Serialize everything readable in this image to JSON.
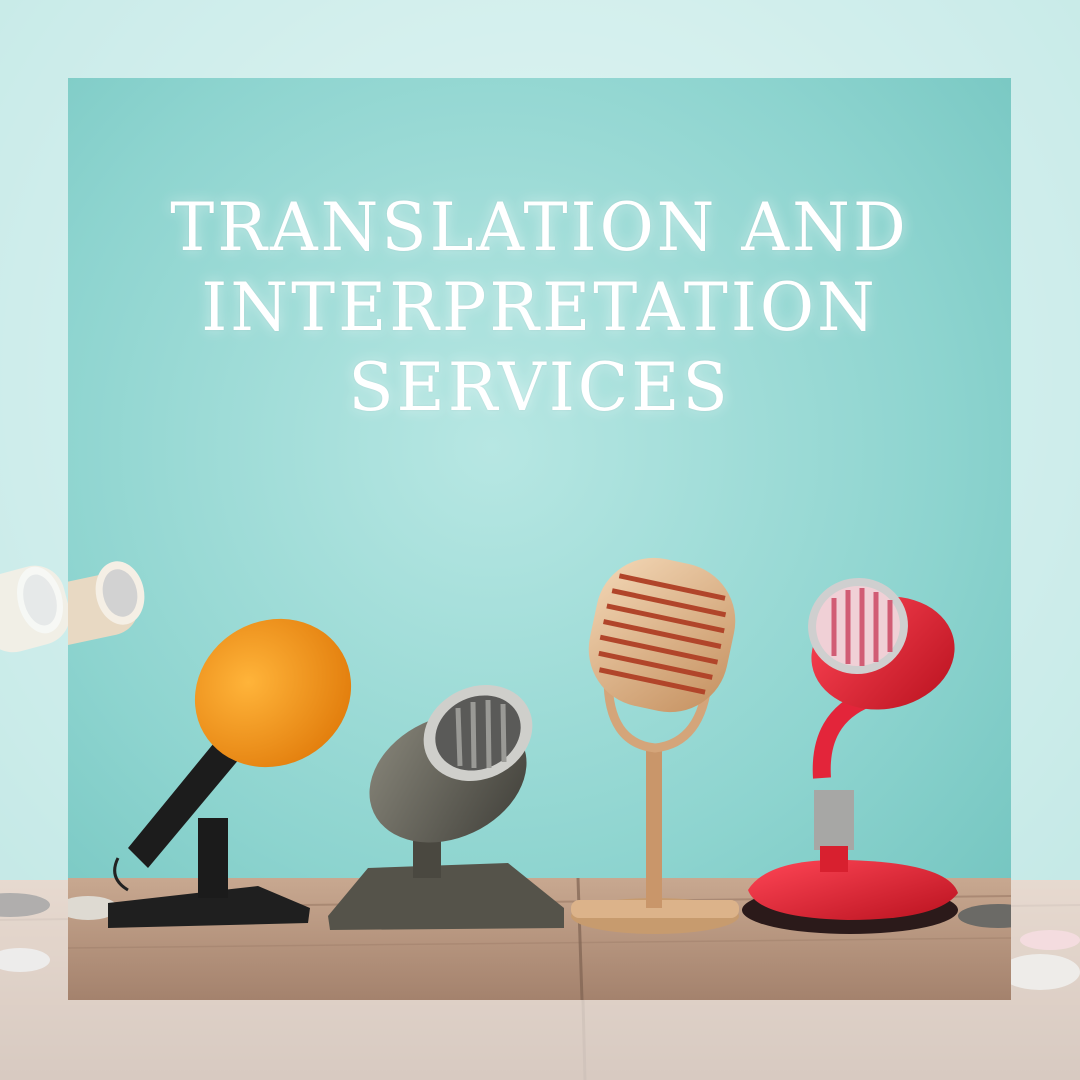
{
  "headline": {
    "line1": "TRANSLATION AND",
    "line2": "INTERPRETATION",
    "line3": "SERVICES"
  },
  "colors": {
    "background_teal": "#9bdcd8",
    "background_light": "#d9efee",
    "table_wood": "#b79a86",
    "text": "#ffffff",
    "mic_orange": "#f39a1c",
    "mic_gold": "#d8a77c",
    "mic_red": "#e0283a",
    "mic_gray": "#6b6a62"
  },
  "icons": [
    "microphone-orange-foam",
    "microphone-vintage-gray",
    "microphone-vintage-gold",
    "microphone-vintage-red"
  ]
}
